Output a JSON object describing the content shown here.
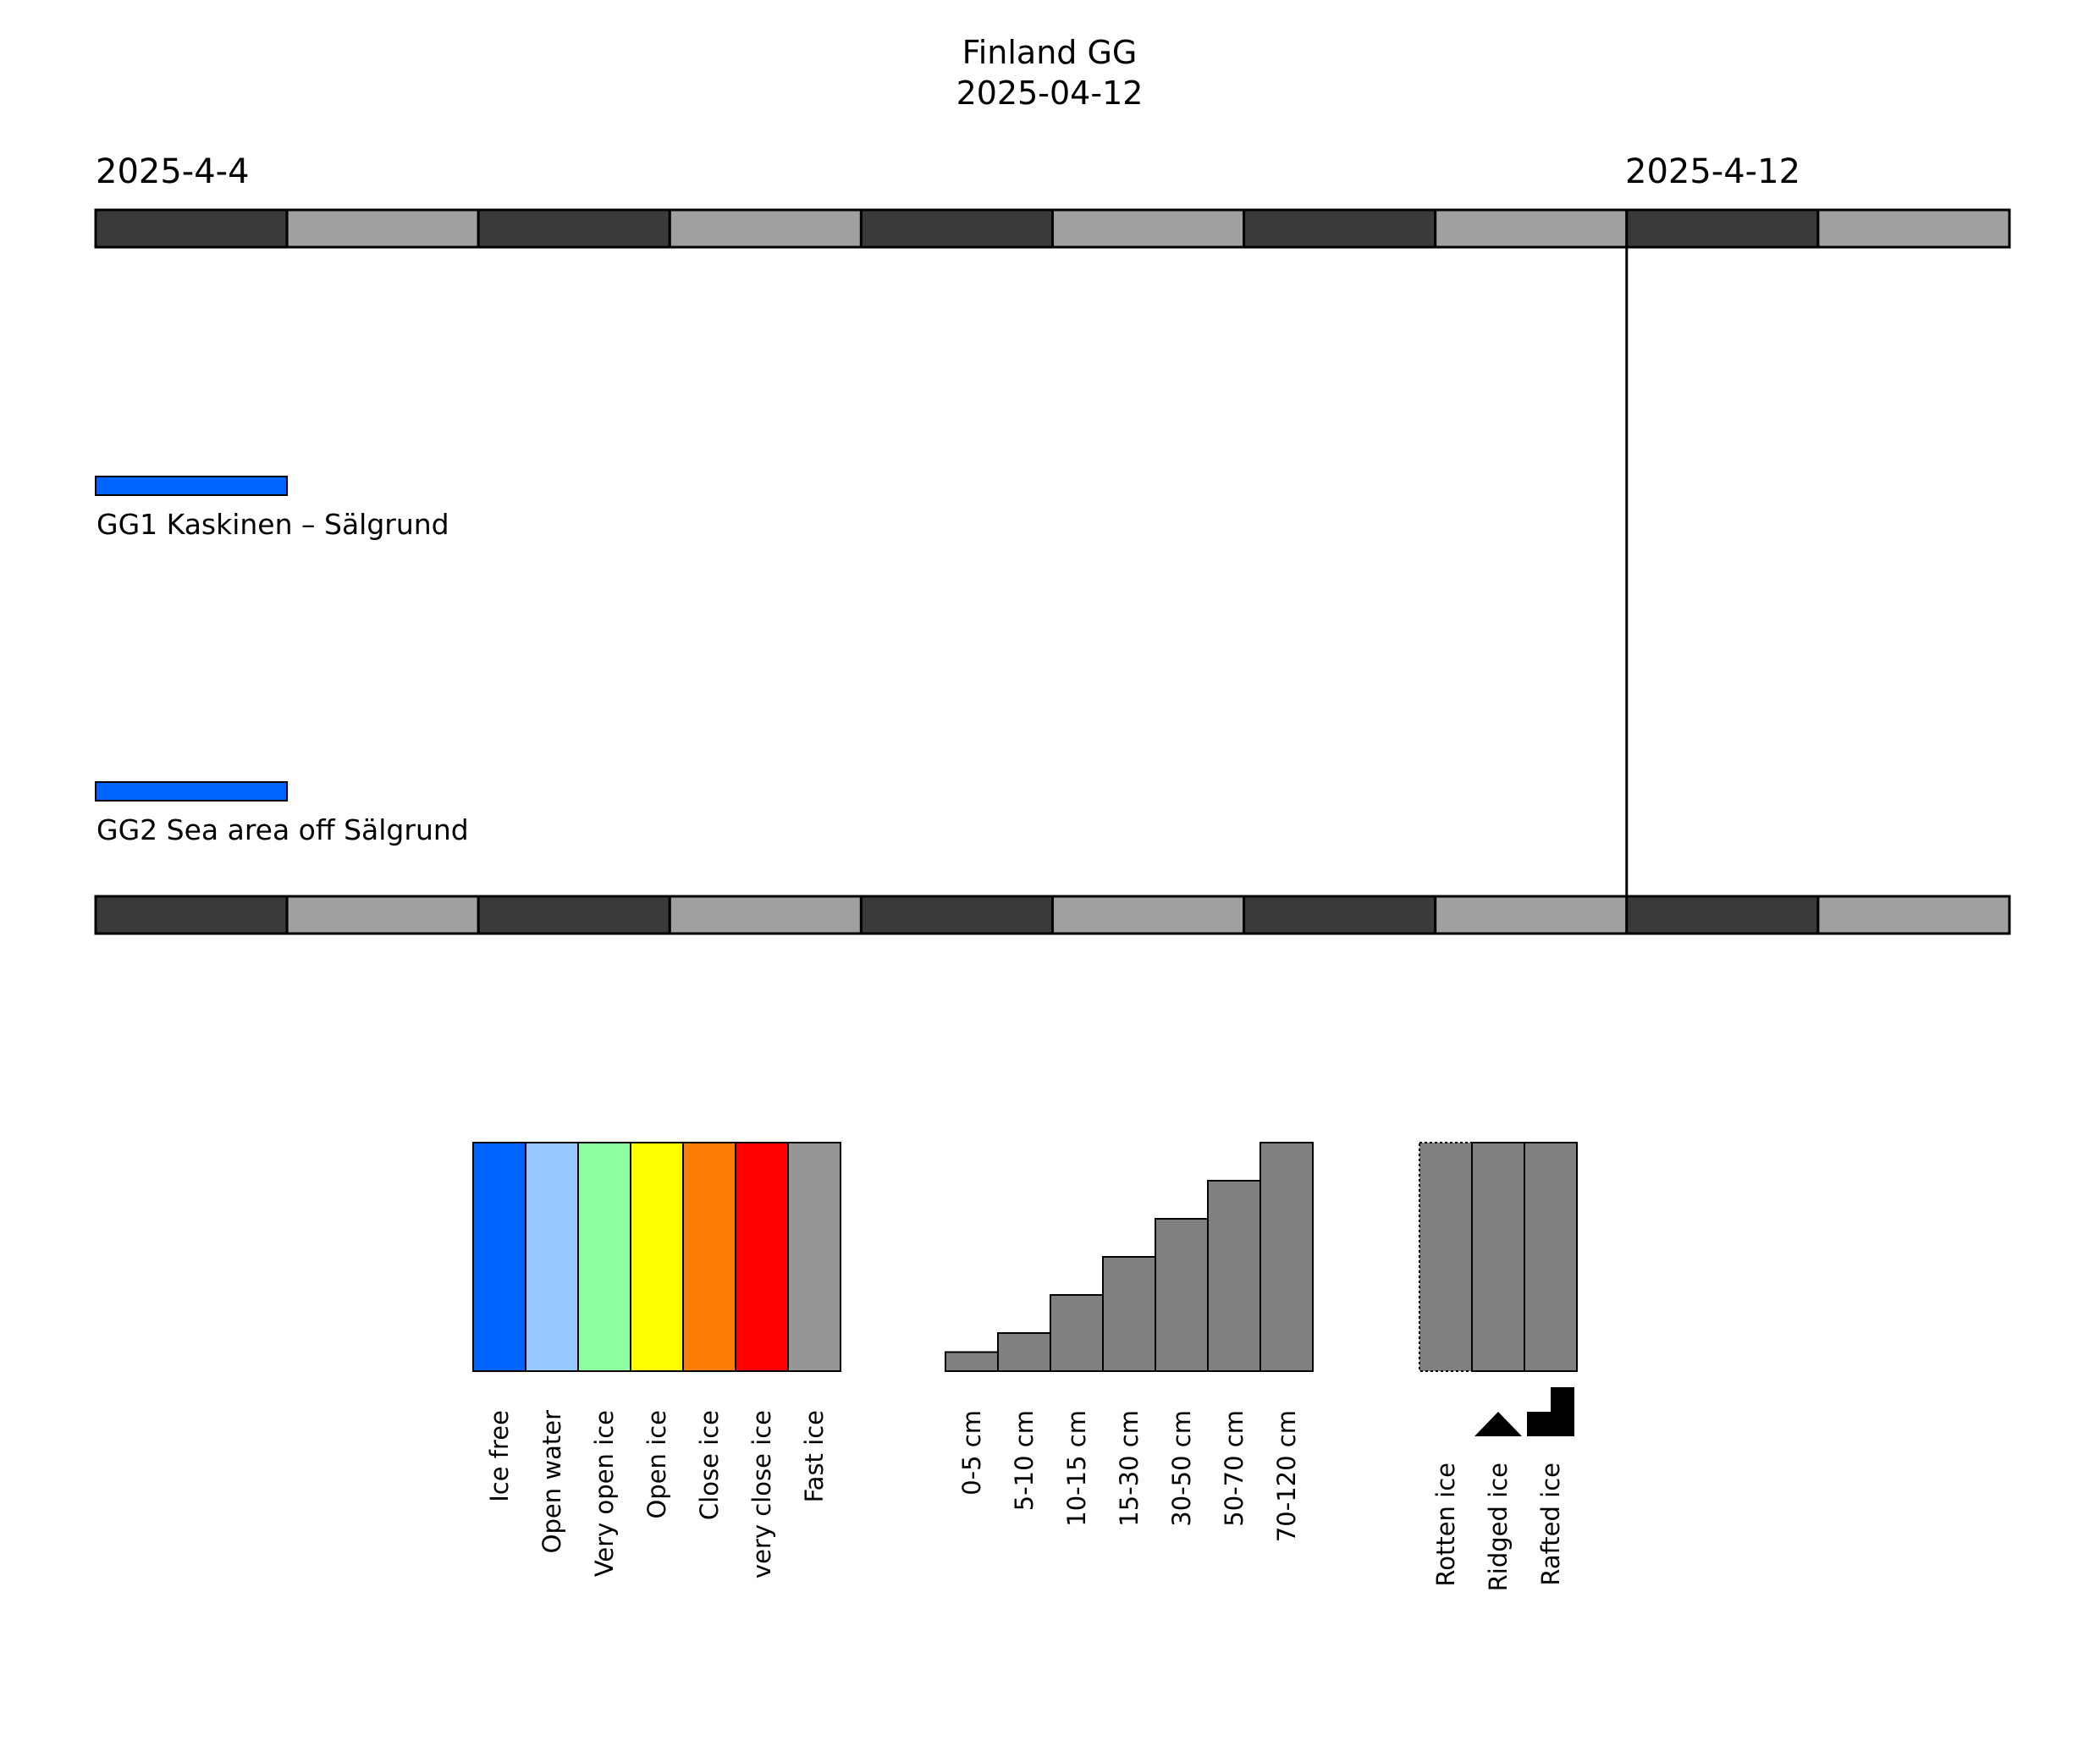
{
  "chart_data": {
    "type": "timeline",
    "title": "Finland GG",
    "subtitle": "2025-04-12",
    "start_date": "2025-4-4",
    "end_date": "2025-4-12",
    "timeline_days": 10,
    "current_day_index": 8,
    "timeline_colors": [
      "#3a3a3a",
      "#a0a0a0"
    ],
    "areas": [
      {
        "label": "GG1 Kaskinen – Sälgrund",
        "segments": [
          {
            "day": 0,
            "category": "Ice free",
            "color": "#0064ff"
          }
        ]
      },
      {
        "label": "GG2 Sea area off Sälgrund",
        "segments": [
          {
            "day": 0,
            "category": "Ice free",
            "color": "#0064ff"
          }
        ]
      }
    ],
    "legend": {
      "concentration": [
        {
          "label": "Ice free",
          "color": "#0064ff"
        },
        {
          "label": "Open water",
          "color": "#96c8ff"
        },
        {
          "label": "Very open ice",
          "color": "#8cff9f"
        },
        {
          "label": "Open ice",
          "color": "#ffff00"
        },
        {
          "label": "Close ice",
          "color": "#ff7d07"
        },
        {
          "label": "very close ice",
          "color": "#ff0000"
        },
        {
          "label": "Fast ice",
          "color": "#969696"
        }
      ],
      "thickness": [
        {
          "label": "0-5 cm",
          "level": 1
        },
        {
          "label": "5-10 cm",
          "level": 2
        },
        {
          "label": "10-15 cm",
          "level": 4
        },
        {
          "label": "15-30 cm",
          "level": 6
        },
        {
          "label": "30-50 cm",
          "level": 8
        },
        {
          "label": "50-70 cm",
          "level": 10
        },
        {
          "label": "70-120 cm",
          "level": 12
        }
      ],
      "thickness_color": "#808080",
      "types": [
        {
          "label": "Rotten ice",
          "symbol": "dotted-border"
        },
        {
          "label": "Ridged ice",
          "symbol": "triangle-icon"
        },
        {
          "label": "Rafted ice",
          "symbol": "step-icon"
        }
      ]
    }
  }
}
